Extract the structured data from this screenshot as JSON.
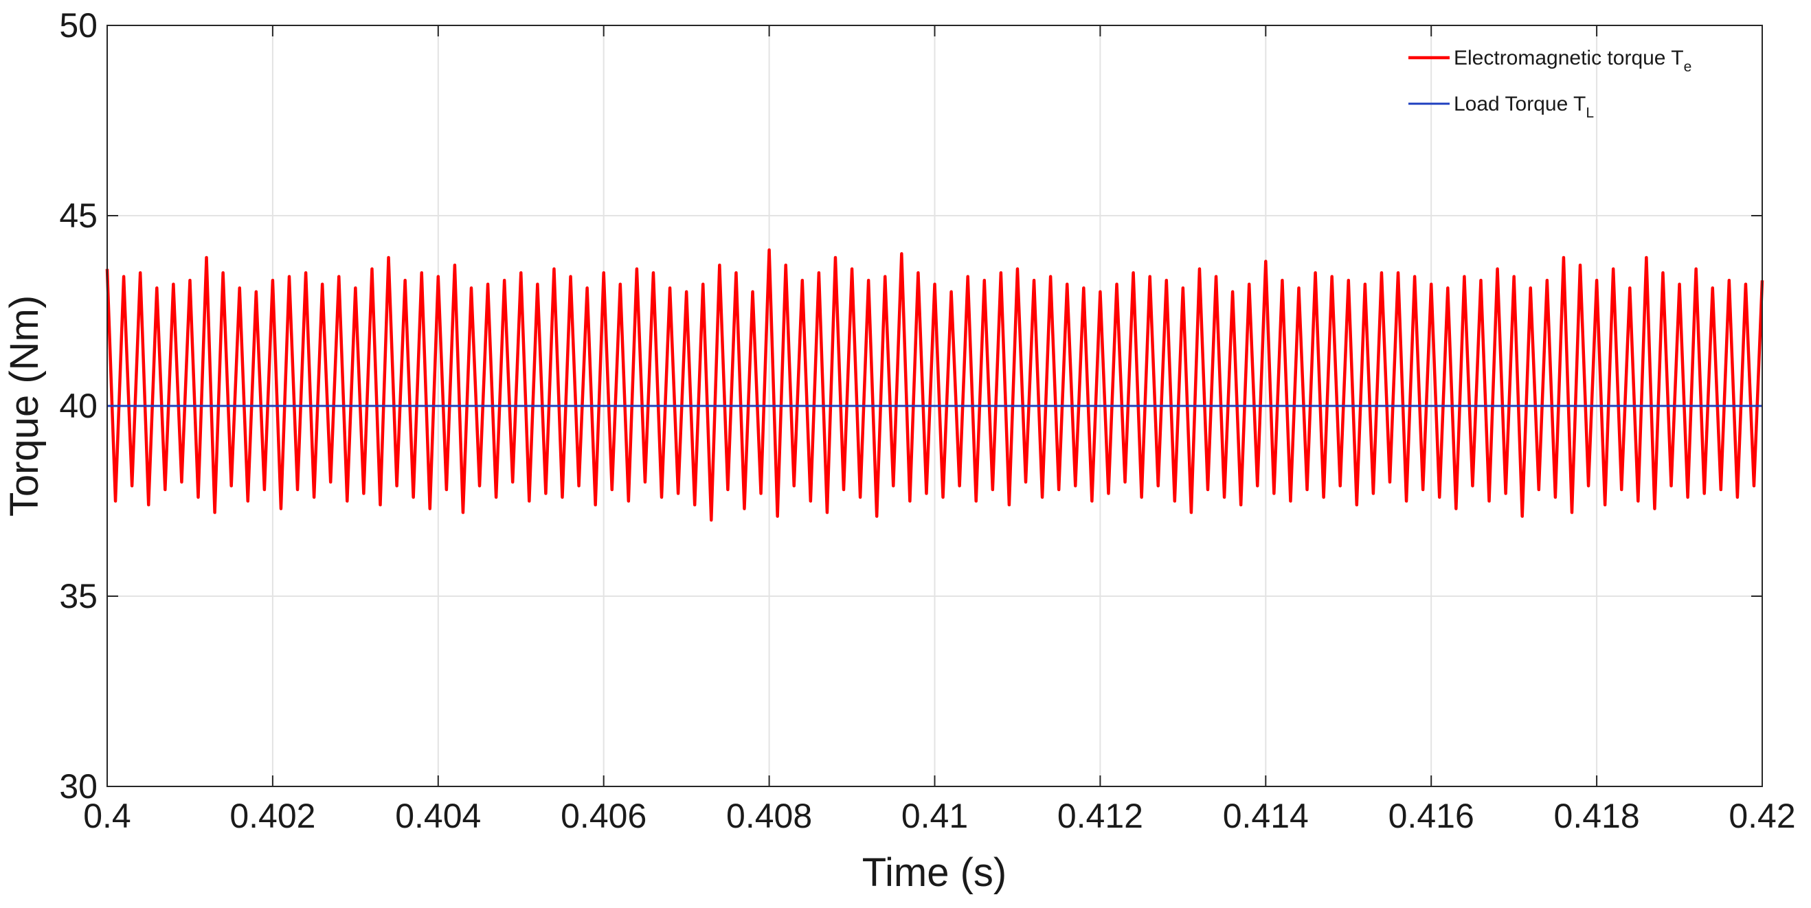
{
  "chart_data": {
    "type": "line",
    "xlabel": "Time (s)",
    "ylabel": "Torque (Nm)",
    "xlim": [
      0.4,
      0.42
    ],
    "ylim": [
      30,
      50
    ],
    "xticks": [
      0.4,
      0.402,
      0.404,
      0.406,
      0.408,
      0.41,
      0.412,
      0.414,
      0.416,
      0.418,
      0.42
    ],
    "yticks": [
      30,
      35,
      40,
      45,
      50
    ],
    "grid": true,
    "legend_loc": "upper right",
    "series": [
      {
        "name": "Electromagnetic torque T",
        "name_subscript": "e",
        "color": "#ff0000",
        "x": [
          0.4,
          0.4001,
          0.4002,
          0.4003,
          0.4004,
          0.4005,
          0.4006,
          0.4007,
          0.4008,
          0.4009,
          0.401,
          0.4011,
          0.4012,
          0.4013,
          0.4014,
          0.4015,
          0.4016,
          0.4017,
          0.4018,
          0.4019,
          0.402,
          0.4021,
          0.4022,
          0.4023,
          0.4024,
          0.4025,
          0.4026,
          0.4027,
          0.4028,
          0.4029,
          0.403,
          0.4031,
          0.4032,
          0.4033,
          0.4034,
          0.4035,
          0.4036,
          0.4037,
          0.4038,
          0.4039,
          0.404,
          0.4041,
          0.4042,
          0.4043,
          0.4044,
          0.4045,
          0.4046,
          0.4047,
          0.4048,
          0.4049,
          0.405,
          0.4051,
          0.4052,
          0.4053,
          0.4054,
          0.4055,
          0.4056,
          0.4057,
          0.4058,
          0.4059,
          0.406,
          0.4061,
          0.4062,
          0.4063,
          0.4064,
          0.4065,
          0.4066,
          0.4067,
          0.4068,
          0.4069,
          0.407,
          0.4071,
          0.4072,
          0.4073,
          0.4074,
          0.4075,
          0.4076,
          0.4077,
          0.4078,
          0.4079,
          0.408,
          0.4081,
          0.4082,
          0.4083,
          0.4084,
          0.4085,
          0.4086,
          0.4087,
          0.4088,
          0.4089,
          0.409,
          0.4091,
          0.4092,
          0.4093,
          0.4094,
          0.4095,
          0.4096,
          0.4097,
          0.4098,
          0.4099,
          0.41,
          0.4101,
          0.4102,
          0.4103,
          0.4104,
          0.4105,
          0.4106,
          0.4107,
          0.4108,
          0.4109,
          0.411,
          0.4111,
          0.4112,
          0.4113,
          0.4114,
          0.4115,
          0.4116,
          0.4117,
          0.4118,
          0.4119,
          0.412,
          0.4121,
          0.4122,
          0.4123,
          0.4124,
          0.4125,
          0.4126,
          0.4127,
          0.4128,
          0.4129,
          0.413,
          0.4131,
          0.4132,
          0.4133,
          0.4134,
          0.4135,
          0.4136,
          0.4137,
          0.4138,
          0.4139,
          0.414,
          0.4141,
          0.4142,
          0.4143,
          0.4144,
          0.4145,
          0.4146,
          0.4147,
          0.4148,
          0.4149,
          0.415,
          0.4151,
          0.4152,
          0.4153,
          0.4154,
          0.4155,
          0.4156,
          0.4157,
          0.4158,
          0.4159,
          0.416,
          0.4161,
          0.4162,
          0.4163,
          0.4164,
          0.4165,
          0.4166,
          0.4167,
          0.4168,
          0.4169,
          0.417,
          0.4171,
          0.4172,
          0.4173,
          0.4174,
          0.4175,
          0.4176,
          0.4177,
          0.4178,
          0.4179,
          0.418,
          0.4181,
          0.4182,
          0.4183,
          0.4184,
          0.4185,
          0.4186,
          0.4187,
          0.4188,
          0.4189,
          0.419,
          0.4191,
          0.4192,
          0.4193,
          0.4194,
          0.4195,
          0.4196,
          0.4197,
          0.4198,
          0.4199,
          0.42
        ],
        "values": [
          43.6,
          37.5,
          43.4,
          37.9,
          43.5,
          37.4,
          43.1,
          37.8,
          43.2,
          38.0,
          43.3,
          37.6,
          43.9,
          37.2,
          43.5,
          37.9,
          43.1,
          37.5,
          43.0,
          37.8,
          43.3,
          37.3,
          43.4,
          37.8,
          43.5,
          37.6,
          43.2,
          38.0,
          43.4,
          37.5,
          43.1,
          37.7,
          43.6,
          37.4,
          43.9,
          37.9,
          43.3,
          37.6,
          43.5,
          37.3,
          43.4,
          37.8,
          43.7,
          37.2,
          43.1,
          37.9,
          43.2,
          37.6,
          43.3,
          38.0,
          43.5,
          37.5,
          43.2,
          37.7,
          43.6,
          37.6,
          43.4,
          37.9,
          43.1,
          37.4,
          43.5,
          37.8,
          43.2,
          37.5,
          43.6,
          38.0,
          43.5,
          37.6,
          43.1,
          37.7,
          43.0,
          37.4,
          43.2,
          37.0,
          43.7,
          37.8,
          43.5,
          37.3,
          43.0,
          37.7,
          44.1,
          37.1,
          43.7,
          37.9,
          43.3,
          37.5,
          43.5,
          37.2,
          43.9,
          37.8,
          43.6,
          37.6,
          43.3,
          37.1,
          43.4,
          37.9,
          44.0,
          37.5,
          43.5,
          37.7,
          43.2,
          37.6,
          43.0,
          37.9,
          43.4,
          37.5,
          43.3,
          37.8,
          43.5,
          37.4,
          43.6,
          38.0,
          43.3,
          37.6,
          43.4,
          37.8,
          43.2,
          37.9,
          43.1,
          37.5,
          43.0,
          37.7,
          43.2,
          38.0,
          43.5,
          37.6,
          43.4,
          37.9,
          43.3,
          37.5,
          43.1,
          37.2,
          43.6,
          37.8,
          43.4,
          37.6,
          43.0,
          37.4,
          43.2,
          37.9,
          43.8,
          37.7,
          43.3,
          37.5,
          43.1,
          37.8,
          43.5,
          37.6,
          43.4,
          37.9,
          43.3,
          37.4,
          43.2,
          37.7,
          43.5,
          38.0,
          43.5,
          37.5,
          43.4,
          37.8,
          43.2,
          37.6,
          43.1,
          37.3,
          43.4,
          37.9,
          43.3,
          37.5,
          43.6,
          37.7,
          43.4,
          37.1,
          43.1,
          37.8,
          43.3,
          37.6,
          43.9,
          37.2,
          43.7,
          37.9,
          43.3,
          37.4,
          43.6,
          37.8,
          43.1,
          37.5,
          43.9,
          37.3,
          43.5,
          37.9,
          43.2,
          37.6,
          43.6,
          37.7,
          43.1,
          37.8,
          43.3,
          37.6,
          43.2,
          37.9,
          43.3
        ]
      },
      {
        "name": "Load Torque T",
        "name_subscript": "L",
        "color": "#1f3fbf",
        "x": [
          0.4,
          0.42
        ],
        "values": [
          40,
          40
        ]
      }
    ]
  }
}
